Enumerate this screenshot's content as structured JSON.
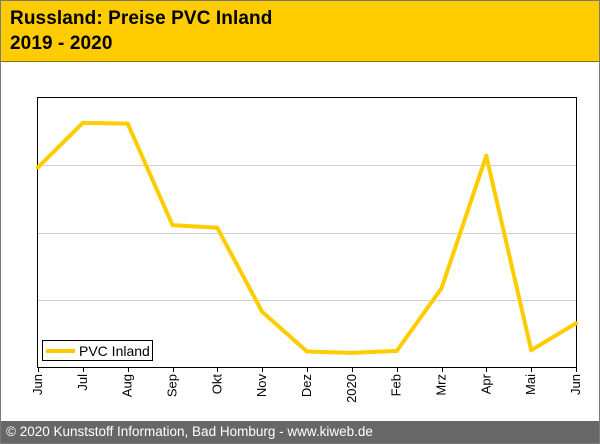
{
  "header": {
    "title_line1": "Russland: Preise PVC Inland",
    "title_line2": "2019 - 2020"
  },
  "footer": {
    "copyright": "© 2020 Kunststoff Information, Bad Homburg - www.kiweb.de"
  },
  "colors": {
    "header_bg": "#ffcc00",
    "line": "#ffcc00",
    "grid": "#d0d0d0",
    "footer_bg": "#676767"
  },
  "chart_data": {
    "type": "line",
    "title": "Russland: Preise PVC Inland 2019 - 2020",
    "categories": [
      "Jun",
      "Jul",
      "Aug",
      "Sep",
      "Okt",
      "Nov",
      "Dez",
      "2020",
      "Feb",
      "Mrz",
      "Apr",
      "Mai",
      "Jun"
    ],
    "series": [
      {
        "name": "PVC Inland",
        "values": [
          2.97,
          3.63,
          3.62,
          2.11,
          2.07,
          0.82,
          0.23,
          0.21,
          0.24,
          1.17,
          3.14,
          0.25,
          0.65
        ]
      }
    ],
    "ylim": [
      0,
      4
    ],
    "y_gridlines": [
      1,
      2,
      3
    ],
    "xlabel": "",
    "ylabel": "",
    "legend_position": "bottom-left",
    "grid": true
  }
}
